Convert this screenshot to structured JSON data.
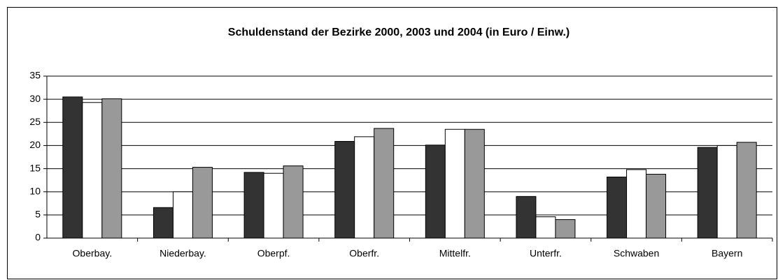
{
  "chart_data": {
    "type": "bar",
    "title": "Schuldenstand der Bezirke 2000, 2003 und 2004 (in Euro / Einw.)",
    "categories": [
      "Oberbay.",
      "Niederbay.",
      "Oberpf.",
      "Oberfr.",
      "Mittelfr.",
      "Unterfr.",
      "Schwaben",
      "Bayern"
    ],
    "series": [
      {
        "color": "#333333",
        "values": [
          30.5,
          6.6,
          14.2,
          20.9,
          20.1,
          9.0,
          13.2,
          19.6
        ]
      },
      {
        "color": "#ffffff",
        "values": [
          29.3,
          10.0,
          14.0,
          21.9,
          23.5,
          4.6,
          14.8,
          20.0
        ]
      },
      {
        "color": "#999999",
        "values": [
          30.1,
          15.3,
          15.6,
          23.7,
          23.5,
          4.0,
          13.8,
          20.7
        ]
      }
    ],
    "ylim": [
      0,
      35
    ],
    "yticks": [
      0,
      5,
      10,
      15,
      20,
      25,
      30,
      35
    ],
    "grid": true
  }
}
